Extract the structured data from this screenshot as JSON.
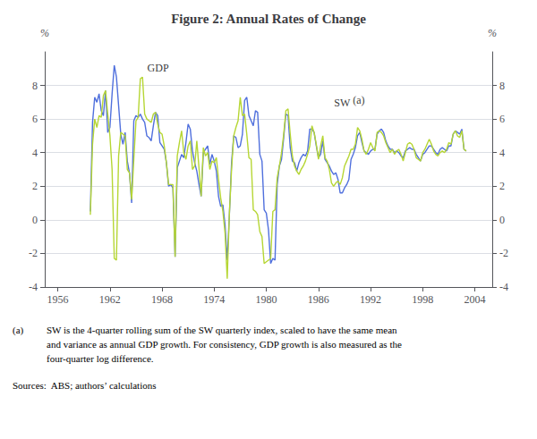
{
  "chart_data": {
    "type": "line",
    "title": "Figure 2: Annual Rates of Change",
    "ylabel": "%",
    "y2label": "%",
    "xlim": [
      1954.5,
      2006.0
    ],
    "xticks": [
      1956,
      1962,
      1968,
      1974,
      1980,
      1986,
      1992,
      1998,
      2004
    ],
    "ylim": [
      -4,
      10
    ],
    "yticks": [
      -4,
      -2,
      0,
      2,
      4,
      6,
      8
    ],
    "y2lim": [
      -4,
      10
    ],
    "y2ticks": [
      -4,
      -2,
      0,
      2,
      4,
      6,
      8
    ],
    "grid": true,
    "x": [
      1959.75,
      1960,
      1960.25,
      1960.5,
      1960.75,
      1961,
      1961.25,
      1961.5,
      1961.75,
      1962,
      1962.25,
      1962.5,
      1962.75,
      1963,
      1963.25,
      1963.5,
      1963.75,
      1964,
      1964.25,
      1964.5,
      1964.75,
      1965,
      1965.25,
      1965.5,
      1965.75,
      1966,
      1966.25,
      1966.5,
      1966.75,
      1967,
      1967.25,
      1967.5,
      1967.75,
      1968,
      1968.25,
      1968.5,
      1968.75,
      1969,
      1969.25,
      1969.5,
      1969.75,
      1970,
      1970.25,
      1970.5,
      1970.75,
      1971,
      1971.25,
      1971.5,
      1971.75,
      1972,
      1972.25,
      1972.5,
      1972.75,
      1973,
      1973.25,
      1973.5,
      1973.75,
      1974,
      1974.25,
      1974.5,
      1974.75,
      1975,
      1975.25,
      1975.5,
      1975.75,
      1976,
      1976.25,
      1976.5,
      1976.75,
      1977,
      1977.25,
      1977.5,
      1977.75,
      1978,
      1978.25,
      1978.5,
      1978.75,
      1979,
      1979.25,
      1979.5,
      1979.75,
      1980,
      1980.25,
      1980.5,
      1980.75,
      1981,
      1981.25,
      1981.5,
      1981.75,
      1982,
      1982.25,
      1982.5,
      1982.75,
      1983,
      1983.25,
      1983.5,
      1983.75,
      1984,
      1984.25,
      1984.5,
      1984.75,
      1985,
      1985.25,
      1985.5,
      1985.75,
      1986,
      1986.25,
      1986.5,
      1986.75,
      1987,
      1987.25,
      1987.5,
      1987.75,
      1988,
      1988.25,
      1988.5,
      1988.75,
      1989,
      1989.25,
      1989.5,
      1989.75,
      1990,
      1990.25,
      1990.5,
      1990.75,
      1991,
      1991.25,
      1991.5,
      1991.75,
      1992,
      1992.25,
      1992.5,
      1992.75,
      1993,
      1993.25,
      1993.5,
      1993.75,
      1994,
      1994.25,
      1994.5,
      1994.75,
      1995,
      1995.25,
      1995.5,
      1995.75,
      1996,
      1996.25,
      1996.5,
      1996.75,
      1997,
      1997.25,
      1997.5,
      1997.75,
      1998,
      1998.25,
      1998.5,
      1998.75,
      1999,
      1999.25,
      1999.5,
      1999.75,
      2000,
      2000.25,
      2000.5,
      2000.75,
      2001,
      2001.25,
      2001.5,
      2001.75,
      2002,
      2002.25,
      2002.5,
      2002.75,
      2003
    ],
    "series": [
      {
        "name": "GDP",
        "values": [
          0.5,
          5.8,
          7.3,
          7.0,
          7.5,
          6.5,
          6.2,
          7.7,
          5.2,
          5.5,
          7.5,
          9.2,
          8.5,
          6.8,
          5.1,
          4.5,
          5.2,
          3.5,
          2.8,
          1.0,
          5.9,
          6.2,
          6.1,
          6.3,
          6.0,
          5.8,
          5.0,
          4.9,
          4.7,
          5.6,
          6.4,
          6.2,
          4.6,
          4.4,
          4.2,
          3.4,
          2.0,
          2.1,
          1.9,
          -2.2,
          3.1,
          3.5,
          3.9,
          3.7,
          4.6,
          5.7,
          5.4,
          4.1,
          3.4,
          2.9,
          2.1,
          1.4,
          4.0,
          4.2,
          4.4,
          3.3,
          3.9,
          3.5,
          2.9,
          1.4,
          0.8,
          0.9,
          -0.3,
          -2.4,
          0.3,
          3.4,
          5.0,
          4.9,
          4.3,
          4.4,
          5.1,
          7.1,
          7.3,
          6.2,
          5.9,
          5.6,
          6.5,
          6.4,
          3.9,
          3.5,
          0.6,
          0.4,
          -0.6,
          -2.6,
          -2.3,
          -2.4,
          2.1,
          3.2,
          3.6,
          4.9,
          6.3,
          6.2,
          4.3,
          3.5,
          3.4,
          2.9,
          3.4,
          3.7,
          3.9,
          3.8,
          4.1,
          5.4,
          5.4,
          5.2,
          4.4,
          3.7,
          3.9,
          4.7,
          3.6,
          3.4,
          3.2,
          2.9,
          2.7,
          2.8,
          2.4,
          1.6,
          1.6,
          1.9,
          2.1,
          2.4,
          3.6,
          3.9,
          4.3,
          5.0,
          5.2,
          4.6,
          4.1,
          4.0,
          3.9,
          4.1,
          4.2,
          4.2,
          5.1,
          5.3,
          5.4,
          5.2,
          4.7,
          4.4,
          4.2,
          4.2,
          4.0,
          4.1,
          4.0,
          3.8,
          3.7,
          4.1,
          4.2,
          4.3,
          4.2,
          4.2,
          3.9,
          3.7,
          3.5,
          3.9,
          4.0,
          4.2,
          4.4,
          4.4,
          4.2,
          4.0,
          3.9,
          4.2,
          4.3,
          4.2,
          4.1,
          4.4,
          4.4,
          5.1,
          5.3,
          5.2,
          5.1,
          5.4,
          4.2,
          4.1
        ]
      },
      {
        "name": "SW",
        "values": [
          0.3,
          4.5,
          6.0,
          5.5,
          6.2,
          6.1,
          7.4,
          7.7,
          6.3,
          5.0,
          3.0,
          -2.3,
          -2.4,
          3.8,
          5.2,
          5.1,
          5.0,
          3.0,
          2.8,
          1.2,
          3.6,
          5.9,
          6.1,
          8.4,
          8.5,
          6.3,
          6.0,
          5.9,
          5.8,
          6.3,
          6.4,
          5.7,
          5.2,
          5.1,
          4.4,
          3.4,
          2.1,
          2.1,
          2.1,
          -2.2,
          3.8,
          4.6,
          5.3,
          4.0,
          3.6,
          4.4,
          4.7,
          3.0,
          3.2,
          4.7,
          3.1,
          1.4,
          4.3,
          3.8,
          4.0,
          3.0,
          3.5,
          3.4,
          3.7,
          2.4,
          1.3,
          0.5,
          -0.8,
          -3.5,
          0.4,
          3.0,
          5.0,
          5.5,
          5.9,
          7.3,
          6.2,
          6.3,
          5.1,
          3.7,
          3.6,
          0.6,
          0.5,
          0.3,
          -0.7,
          -1.0,
          -2.6,
          -2.5,
          -2.4,
          -2.3,
          0.5,
          0.6,
          2.5,
          3.2,
          4.0,
          5.1,
          6.5,
          6.6,
          5.1,
          3.8,
          3.2,
          2.9,
          2.7,
          3.0,
          3.2,
          3.5,
          3.9,
          4.4,
          5.6,
          5.2,
          4.5,
          3.6,
          4.4,
          5.0,
          3.7,
          3.5,
          3.0,
          2.2,
          2.0,
          2.2,
          2.3,
          2.1,
          2.5,
          3.2,
          3.5,
          3.8,
          4.2,
          4.2,
          4.5,
          5.5,
          5.3,
          4.8,
          4.1,
          3.9,
          4.2,
          4.6,
          4.3,
          4.1,
          5.2,
          5.3,
          5.2,
          5.0,
          4.6,
          4.3,
          4.0,
          4.2,
          3.9,
          4.1,
          4.2,
          3.9,
          3.5,
          4.0,
          4.5,
          4.6,
          4.5,
          4.2,
          3.7,
          3.6,
          3.5,
          4.0,
          4.2,
          4.5,
          4.8,
          4.5,
          4.1,
          3.9,
          3.8,
          4.0,
          4.1,
          4.0,
          4.2,
          4.6,
          4.5,
          5.1,
          5.3,
          5.0,
          4.9,
          5.3,
          4.2,
          4.1
        ]
      }
    ],
    "annotations": [
      {
        "text": "GDP",
        "x": 1966.3,
        "y": 8.65
      },
      {
        "text": "SW",
        "x": 1987.8,
        "y": 6.6
      },
      {
        "text": "(a)",
        "x": 1989.95,
        "y": 6.75
      }
    ],
    "note_marker": "(a)",
    "note": [
      "SW is the 4-quarter rolling sum of the SW quarterly index, scaled to have the same mean",
      "and variance as annual GDP growth. For consistency, GDP growth is also measured as the",
      "four-quarter log difference."
    ],
    "source": "Sources:  ABS; authors’ calculations"
  }
}
